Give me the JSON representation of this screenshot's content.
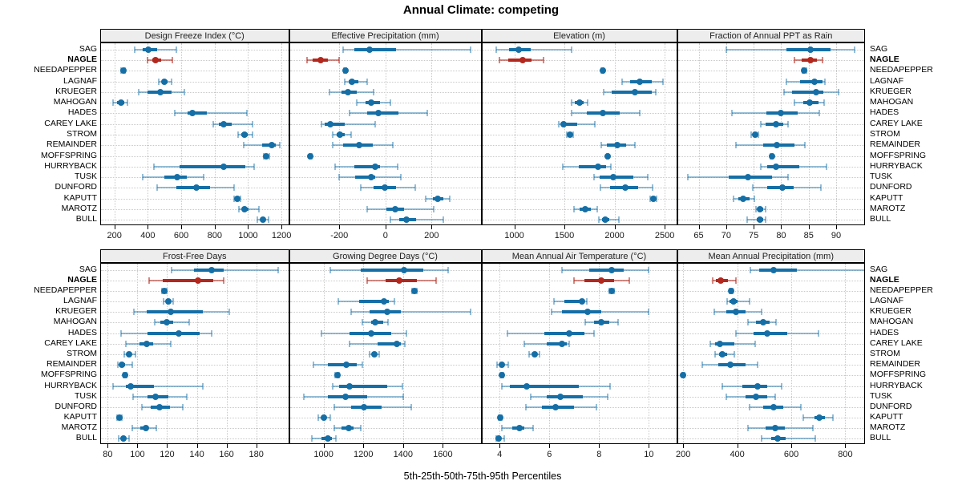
{
  "title": "Annual Climate: competing",
  "caption": "5th-25th-50th-75th-95th Percentiles",
  "sites": [
    "SAG",
    "NAGLE",
    "NEEDAPEPPER",
    "LAGNAF",
    "KRUEGER",
    "MAHOGAN",
    "HADES",
    "CAREY LAKE",
    "STROM",
    "REMAINDER",
    "MOFFSPRING",
    "HURRYBACK",
    "TUSK",
    "DUNFORD",
    "KAPUTT",
    "MAROTZ",
    "BULL"
  ],
  "highlight_site": "NAGLE",
  "legend_note": "values per site are [5th,25th,50th,75th,95th] percentiles",
  "colors": {
    "series": "#156fa6",
    "series_light": "rgba(21,111,166,0.45)",
    "highlight": "#b2281e",
    "highlight_light": "rgba(178,40,30,0.55)",
    "strip_bg": "#ededed",
    "grid": "#c9c9c9"
  },
  "chart_data": [
    {
      "type": "dotplot-percentiles",
      "title": "Design Freeze Index (°C)",
      "row": 0,
      "col": 0,
      "xlim": [
        120,
        1240
      ],
      "ticks": [
        200,
        400,
        600,
        800,
        1000,
        1200
      ],
      "series": [
        [
          320,
          370,
          405,
          455,
          570
        ],
        [
          400,
          425,
          445,
          480,
          545
        ],
        [
          240,
          248,
          253,
          258,
          265
        ],
        [
          465,
          485,
          500,
          520,
          540
        ],
        [
          345,
          400,
          475,
          540,
          620
        ],
        [
          190,
          215,
          240,
          260,
          280
        ],
        [
          560,
          640,
          665,
          755,
          995
        ],
        [
          790,
          825,
          855,
          900,
          1025
        ],
        [
          940,
          960,
          980,
          1000,
          1025
        ],
        [
          975,
          1085,
          1140,
          1165,
          1190
        ],
        [
          1095,
          1105,
          1110,
          1118,
          1125
        ],
        [
          435,
          590,
          855,
          985,
          1035
        ],
        [
          370,
          500,
          575,
          635,
          735
        ],
        [
          455,
          570,
          690,
          770,
          915
        ],
        [
          918,
          928,
          935,
          945,
          953
        ],
        [
          945,
          965,
          980,
          1005,
          1065
        ],
        [
          1055,
          1075,
          1088,
          1100,
          1122
        ]
      ]
    },
    {
      "type": "dotplot-percentiles",
      "title": "Effective Precipitation (mm)",
      "row": 0,
      "col": 1,
      "xlim": [
        -415,
        413
      ],
      "ticks": [
        -200,
        0,
        200
      ],
      "series": [
        [
          -185,
          -135,
          -70,
          45,
          370
        ],
        [
          -340,
          -315,
          -282,
          -248,
          -202
        ],
        [
          -180,
          -177,
          -174,
          -171,
          -168
        ],
        [
          -175,
          -158,
          -144,
          -117,
          -81
        ],
        [
          -244,
          -190,
          -164,
          -126,
          -52
        ],
        [
          -124,
          -87,
          -61,
          -24,
          23
        ],
        [
          -155,
          -81,
          -29,
          57,
          180
        ],
        [
          -276,
          -263,
          -240,
          -178,
          -44
        ],
        [
          -228,
          -212,
          -198,
          -177,
          -150
        ],
        [
          -228,
          -185,
          -113,
          -55,
          32
        ],
        [
          -329,
          -327,
          -325,
          -323,
          -321
        ],
        [
          -217,
          -136,
          -45,
          -25,
          52
        ],
        [
          -200,
          -132,
          -63,
          -45,
          66
        ],
        [
          -106,
          -50,
          -3,
          46,
          129
        ],
        [
          175,
          205,
          228,
          250,
          278
        ],
        [
          -81,
          5,
          44,
          80,
          210
        ],
        [
          23,
          60,
          92,
          134,
          250
        ]
      ]
    },
    {
      "type": "dotplot-percentiles",
      "title": "Elevation (m)",
      "row": 0,
      "col": 2,
      "xlim": [
        680,
        2615
      ],
      "ticks": [
        1000,
        1500,
        2000,
        2500
      ],
      "series": [
        [
          820,
          950,
          1045,
          1165,
          1570
        ],
        [
          855,
          940,
          1085,
          1175,
          1290
        ],
        [
          1870,
          1875,
          1880,
          1885,
          1890
        ],
        [
          2075,
          2155,
          2250,
          2370,
          2480
        ],
        [
          1895,
          1970,
          2205,
          2370,
          2415
        ],
        [
          1575,
          1600,
          1650,
          1695,
          1730
        ],
        [
          1575,
          1720,
          1885,
          2050,
          2250
        ],
        [
          1440,
          1465,
          1495,
          1625,
          1805
        ],
        [
          1525,
          1540,
          1555,
          1570,
          1585
        ],
        [
          1870,
          1920,
          2025,
          2115,
          2205
        ],
        [
          1925,
          1928,
          1931,
          1934,
          1937
        ],
        [
          1480,
          1640,
          1835,
          1915,
          1965
        ],
        [
          1795,
          1855,
          1990,
          2185,
          2330
        ],
        [
          1860,
          1955,
          2105,
          2235,
          2380
        ],
        [
          2355,
          2375,
          2390,
          2405,
          2420
        ],
        [
          1595,
          1655,
          1705,
          1760,
          1830
        ],
        [
          1840,
          1875,
          1905,
          1945,
          2045
        ]
      ]
    },
    {
      "type": "dotplot-percentiles",
      "title": "Fraction of Annual PPT as Rain",
      "row": 0,
      "col": 3,
      "xlim": [
        61.2,
        95.1
      ],
      "ticks": [
        65,
        70,
        75,
        80,
        85,
        90
      ],
      "series": [
        [
          70,
          81,
          85.3,
          89,
          93.3
        ],
        [
          82.4,
          83.7,
          85.3,
          86.5,
          87.5
        ],
        [
          83.9,
          84.1,
          84.2,
          84.4,
          84.6
        ],
        [
          81,
          83.5,
          86,
          87.5,
          88
        ],
        [
          80.5,
          82,
          86.3,
          87.7,
          90.5
        ],
        [
          82.4,
          84,
          85.2,
          86.8,
          87.8
        ],
        [
          71,
          77.3,
          80,
          83,
          87
        ],
        [
          76.3,
          77.2,
          79.1,
          80.4,
          81.3
        ],
        [
          74.5,
          74.9,
          75.2,
          75.6,
          75.9
        ],
        [
          71.7,
          76.8,
          79.2,
          82.4,
          84.3
        ],
        [
          78.1,
          78.2,
          78.3,
          78.4,
          78.5
        ],
        [
          76.3,
          77.5,
          79.1,
          83.3,
          88.3
        ],
        [
          63,
          70.5,
          74,
          78.3,
          81.3
        ],
        [
          74.8,
          77.5,
          80.2,
          82.2,
          87.2
        ],
        [
          71.4,
          72.2,
          73.1,
          74.2,
          75.1
        ],
        [
          75.4,
          75.8,
          76.2,
          76.7,
          77.1
        ],
        [
          73.8,
          75.5,
          76.2,
          76.8,
          77.2
        ]
      ]
    },
    {
      "type": "dotplot-percentiles",
      "title": "Frost-Free Days",
      "row": 1,
      "col": 0,
      "xlim": [
        75.5,
        201.5
      ],
      "ticks": [
        80,
        100,
        120,
        140,
        160,
        180
      ],
      "series": [
        [
          123,
          138,
          150,
          158,
          195
        ],
        [
          108,
          117,
          141,
          151,
          158
        ],
        [
          116.5,
          117.3,
          118,
          118.7,
          119.5
        ],
        [
          117.5,
          119.5,
          121,
          122.3,
          124
        ],
        [
          97.5,
          106,
          122.5,
          144,
          162
        ],
        [
          111.5,
          115.5,
          119.5,
          124,
          135
        ],
        [
          89,
          107,
          128,
          142,
          150
        ],
        [
          92,
          101.5,
          106.5,
          110.5,
          122.5
        ],
        [
          91,
          93,
          94.5,
          96,
          98.5
        ],
        [
          87,
          88,
          89.5,
          91.5,
          96.5
        ],
        [
          90.5,
          91,
          91.5,
          92,
          92.5
        ],
        [
          83.5,
          92,
          95.5,
          111,
          144
        ],
        [
          97,
          107,
          112,
          121,
          133
        ],
        [
          103,
          109,
          115,
          122,
          130.5
        ],
        [
          86.5,
          87.3,
          88,
          88.7,
          89.5
        ],
        [
          96.5,
          102,
          105.5,
          107.5,
          112.5
        ],
        [
          87.5,
          89,
          90.5,
          91.5,
          94.5
        ]
      ]
    },
    {
      "type": "dotplot-percentiles",
      "title": "Growing Degree Days (°C)",
      "row": 1,
      "col": 1,
      "xlim": [
        830,
        1790
      ],
      "ticks": [
        1000,
        1200,
        1400,
        1600
      ],
      "series": [
        [
          1035,
          1185,
          1405,
          1500,
          1625
        ],
        [
          1220,
          1310,
          1380,
          1470,
          1565
        ],
        [
          1445,
          1452,
          1458,
          1464,
          1470
        ],
        [
          1075,
          1180,
          1305,
          1330,
          1355
        ],
        [
          1140,
          1230,
          1320,
          1390,
          1740
        ],
        [
          1195,
          1240,
          1260,
          1300,
          1325
        ],
        [
          990,
          1130,
          1240,
          1340,
          1415
        ],
        [
          1130,
          1270,
          1370,
          1387,
          1410
        ],
        [
          1230,
          1245,
          1255,
          1265,
          1280
        ],
        [
          950,
          1020,
          1115,
          1165,
          1195
        ],
        [
          1058,
          1063,
          1068,
          1073,
          1078
        ],
        [
          1045,
          1080,
          1130,
          1320,
          1395
        ],
        [
          900,
          1020,
          1112,
          1220,
          1400
        ],
        [
          1055,
          1140,
          1205,
          1290,
          1440
        ],
        [
          973,
          988,
          1002,
          1015,
          1032
        ],
        [
          1055,
          1090,
          1125,
          1150,
          1185
        ],
        [
          940,
          990,
          1020,
          1040,
          1060
        ]
      ]
    },
    {
      "type": "dotplot-percentiles",
      "title": "Mean Annual Air Temperature (°C)",
      "row": 1,
      "col": 2,
      "xlim": [
        3.3,
        11.1
      ],
      "ticks": [
        4,
        6,
        8,
        10
      ],
      "series": [
        [
          6.5,
          7.6,
          8.5,
          9.0,
          10.0
        ],
        [
          7.0,
          7.4,
          8.1,
          8.6,
          9.2
        ],
        [
          8.4,
          8.45,
          8.5,
          8.55,
          8.6
        ],
        [
          6.2,
          6.6,
          7.3,
          7.4,
          7.5
        ],
        [
          6.1,
          6.5,
          7.55,
          8.1,
          10.0
        ],
        [
          7.45,
          7.8,
          8.1,
          8.4,
          8.75
        ],
        [
          4.3,
          5.8,
          6.8,
          7.4,
          7.8
        ],
        [
          5.0,
          5.9,
          6.5,
          6.7,
          6.8
        ],
        [
          5.2,
          5.3,
          5.4,
          5.5,
          5.6
        ],
        [
          3.9,
          4.0,
          4.1,
          4.2,
          4.35
        ],
        [
          4.05,
          4.08,
          4.1,
          4.12,
          4.15
        ],
        [
          4.1,
          4.4,
          5.1,
          7.2,
          8.45
        ],
        [
          5.25,
          5.9,
          6.45,
          7.35,
          8.35
        ],
        [
          5.05,
          5.7,
          6.25,
          7.0,
          7.9
        ],
        [
          3.95,
          4.0,
          4.02,
          4.05,
          4.1
        ],
        [
          4.1,
          4.5,
          4.8,
          5.0,
          5.35
        ],
        [
          3.85,
          3.92,
          3.95,
          4.05,
          4.2
        ]
      ]
    },
    {
      "type": "dotplot-percentiles",
      "title": "Mean Annual Precipitation (mm)",
      "row": 1,
      "col": 3,
      "xlim": [
        180,
        870
      ],
      "ticks": [
        200,
        400,
        600,
        800
      ],
      "series": [
        [
          450,
          480,
          535,
          620,
          905
        ],
        [
          310,
          320,
          340,
          365,
          395
        ],
        [
          370,
          373,
          376,
          379,
          382
        ],
        [
          362,
          372,
          385,
          400,
          445
        ],
        [
          315,
          360,
          395,
          430,
          490
        ],
        [
          440,
          470,
          495,
          520,
          545
        ],
        [
          395,
          460,
          510,
          585,
          700
        ],
        [
          300,
          318,
          335,
          390,
          465
        ],
        [
          318,
          332,
          345,
          362,
          390
        ],
        [
          270,
          330,
          375,
          430,
          475
        ],
        [
          196,
          198,
          200,
          202,
          205
        ],
        [
          345,
          420,
          475,
          510,
          565
        ],
        [
          360,
          430,
          470,
          510,
          540
        ],
        [
          445,
          495,
          535,
          570,
          635
        ],
        [
          645,
          685,
          705,
          725,
          755
        ],
        [
          440,
          505,
          540,
          575,
          680
        ],
        [
          490,
          525,
          550,
          580,
          690
        ]
      ]
    }
  ]
}
